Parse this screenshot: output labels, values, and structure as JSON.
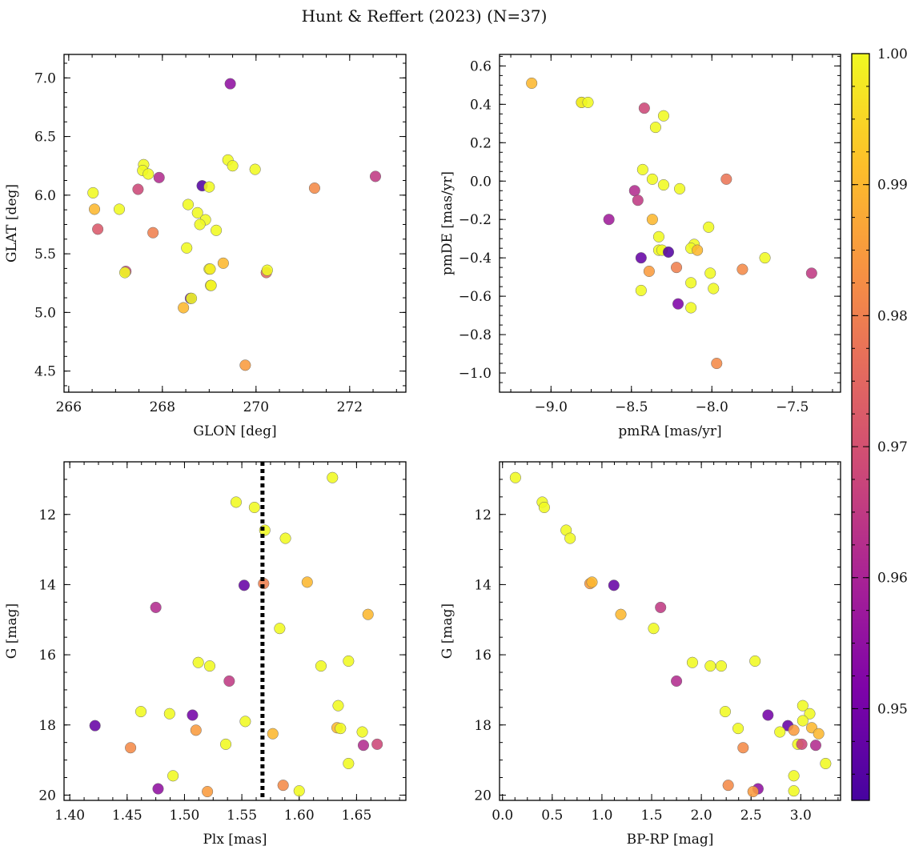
{
  "figure": {
    "title": "Hunt & Reffert (2023) (N=37)"
  },
  "colorbar": {
    "colormap": "plasma",
    "range": [
      0.943,
      1.0
    ],
    "ticks": [
      0.95,
      0.96,
      0.97,
      0.98,
      0.99,
      1.0
    ],
    "tick_labels": [
      "0.95",
      "0.96",
      "0.97",
      "0.98",
      "0.99",
      "1.00"
    ]
  },
  "chart_data": [
    {
      "type": "scatter",
      "name": "glon-glat",
      "xlabel": "GLON [deg]",
      "ylabel": "GLAT [deg]",
      "xlim": [
        265.9,
        273.2
      ],
      "ylim": [
        4.32,
        7.2
      ],
      "y_inverted": false,
      "xticks": [
        266,
        268,
        270,
        272
      ],
      "xtick_labels": [
        "266",
        "268",
        "270",
        "272"
      ],
      "yticks": [
        4.5,
        5.0,
        5.5,
        6.0,
        6.5,
        7.0
      ],
      "ytick_labels": [
        "4.5",
        "5.0",
        "5.5",
        "6.0",
        "6.5",
        "7.0"
      ],
      "points": [
        [
          269.45,
          6.95,
          0.955
        ],
        [
          267.6,
          6.26,
          1.0
        ],
        [
          267.58,
          6.21,
          1.0
        ],
        [
          267.7,
          6.18,
          1.0
        ],
        [
          267.93,
          6.15,
          0.962
        ],
        [
          269.4,
          6.3,
          1.0
        ],
        [
          269.5,
          6.25,
          1.0
        ],
        [
          269.98,
          6.22,
          1.0
        ],
        [
          272.55,
          6.16,
          0.965
        ],
        [
          271.25,
          6.06,
          0.982
        ],
        [
          268.85,
          6.08,
          0.945
        ],
        [
          269.0,
          6.07,
          1.0
        ],
        [
          266.52,
          6.02,
          1.0
        ],
        [
          267.48,
          6.05,
          0.968
        ],
        [
          268.55,
          5.92,
          1.0
        ],
        [
          266.55,
          5.88,
          0.99
        ],
        [
          267.08,
          5.88,
          1.0
        ],
        [
          268.75,
          5.85,
          1.0
        ],
        [
          268.92,
          5.79,
          1.0
        ],
        [
          268.8,
          5.75,
          1.0
        ],
        [
          266.62,
          5.71,
          0.972
        ],
        [
          267.8,
          5.68,
          0.98
        ],
        [
          269.15,
          5.7,
          1.0
        ],
        [
          268.52,
          5.55,
          1.0
        ],
        [
          269.3,
          5.42,
          0.99
        ],
        [
          269.0,
          5.37,
          1.0
        ],
        [
          269.02,
          5.37,
          0.998
        ],
        [
          267.22,
          5.35,
          0.968
        ],
        [
          267.2,
          5.34,
          1.0
        ],
        [
          270.22,
          5.34,
          0.975
        ],
        [
          270.24,
          5.36,
          1.0
        ],
        [
          269.03,
          5.23,
          0.99
        ],
        [
          269.04,
          5.23,
          1.0
        ],
        [
          268.6,
          5.12,
          0.948
        ],
        [
          268.62,
          5.12,
          1.0
        ],
        [
          268.45,
          5.04,
          0.99
        ],
        [
          269.77,
          4.55,
          0.985
        ]
      ]
    },
    {
      "type": "scatter",
      "name": "pmra-pmde",
      "xlabel": "pmRA [mas/yr]",
      "ylabel": "pmDE [mas/yr]",
      "xlim": [
        -9.32,
        -7.2
      ],
      "ylim": [
        -1.1,
        0.66
      ],
      "y_inverted": false,
      "xticks": [
        -9.0,
        -8.5,
        -8.0,
        -7.5
      ],
      "xtick_labels": [
        "−9.0",
        "−8.5",
        "−8.0",
        "−7.5"
      ],
      "yticks": [
        -1.0,
        -0.8,
        -0.6,
        -0.4,
        -0.2,
        0.0,
        0.2,
        0.4,
        0.6
      ],
      "ytick_labels": [
        "−1.0",
        "−0.8",
        "−0.6",
        "−0.4",
        "−0.2",
        "0.0",
        "0.2",
        "0.4",
        "0.6"
      ],
      "points": [
        [
          -9.12,
          0.51,
          0.99
        ],
        [
          -8.81,
          0.41,
          0.98
        ],
        [
          -8.81,
          0.41,
          1.0
        ],
        [
          -8.77,
          0.41,
          1.0
        ],
        [
          -8.42,
          0.38,
          0.968
        ],
        [
          -8.3,
          0.34,
          1.0
        ],
        [
          -8.35,
          0.28,
          1.0
        ],
        [
          -8.43,
          0.06,
          1.0
        ],
        [
          -8.37,
          0.01,
          1.0
        ],
        [
          -7.91,
          0.01,
          0.978
        ],
        [
          -8.3,
          -0.02,
          1.0
        ],
        [
          -8.2,
          -0.04,
          1.0
        ],
        [
          -8.48,
          -0.05,
          0.962
        ],
        [
          -8.46,
          -0.1,
          0.965
        ],
        [
          -8.64,
          -0.2,
          0.958
        ],
        [
          -8.37,
          -0.2,
          0.99
        ],
        [
          -8.02,
          -0.24,
          1.0
        ],
        [
          -8.33,
          -0.29,
          1.0
        ],
        [
          -8.11,
          -0.33,
          1.0
        ],
        [
          -8.13,
          -0.35,
          1.0
        ],
        [
          -8.33,
          -0.36,
          1.0
        ],
        [
          -8.31,
          -0.36,
          1.0
        ],
        [
          -8.27,
          -0.37,
          0.945
        ],
        [
          -8.09,
          -0.36,
          0.99
        ],
        [
          -7.67,
          -0.4,
          1.0
        ],
        [
          -8.44,
          -0.4,
          0.948
        ],
        [
          -7.81,
          -0.46,
          0.982
        ],
        [
          -8.22,
          -0.45,
          0.98
        ],
        [
          -8.39,
          -0.47,
          0.985
        ],
        [
          -8.01,
          -0.48,
          1.0
        ],
        [
          -7.38,
          -0.48,
          0.965
        ],
        [
          -8.13,
          -0.53,
          1.0
        ],
        [
          -7.99,
          -0.56,
          1.0
        ],
        [
          -8.44,
          -0.57,
          1.0
        ],
        [
          -8.21,
          -0.64,
          0.952
        ],
        [
          -8.13,
          -0.66,
          1.0
        ],
        [
          -7.97,
          -0.95,
          0.982
        ]
      ]
    },
    {
      "type": "scatter",
      "name": "plx-g",
      "xlabel": "Plx [mas]",
      "ylabel": "G [mag]",
      "xlim": [
        1.395,
        1.693
      ],
      "ylim": [
        20.15,
        10.5
      ],
      "y_inverted": true,
      "vline": {
        "x": 1.568,
        "style": "dotted",
        "color": "#000000"
      },
      "xticks": [
        1.4,
        1.45,
        1.5,
        1.55,
        1.6,
        1.65
      ],
      "xtick_labels": [
        "1.40",
        "1.45",
        "1.50",
        "1.55",
        "1.60",
        "1.65"
      ],
      "yticks": [
        12,
        14,
        16,
        18,
        20
      ],
      "ytick_labels": [
        "12",
        "14",
        "16",
        "18",
        "20"
      ],
      "points": [
        [
          1.629,
          10.95,
          1.0
        ],
        [
          1.545,
          11.65,
          1.0
        ],
        [
          1.561,
          11.8,
          1.0
        ],
        [
          1.57,
          12.45,
          1.0
        ],
        [
          1.588,
          12.68,
          1.0
        ],
        [
          1.552,
          14.02,
          0.948
        ],
        [
          1.569,
          13.97,
          0.98
        ],
        [
          1.607,
          13.93,
          0.99
        ],
        [
          1.475,
          14.65,
          0.962
        ],
        [
          1.66,
          14.85,
          0.99
        ],
        [
          1.583,
          15.25,
          1.0
        ],
        [
          1.512,
          16.22,
          1.0
        ],
        [
          1.522,
          16.32,
          1.0
        ],
        [
          1.643,
          16.18,
          1.0
        ],
        [
          1.619,
          16.32,
          1.0
        ],
        [
          1.539,
          16.75,
          0.965
        ],
        [
          1.462,
          17.62,
          1.0
        ],
        [
          1.487,
          17.68,
          1.0
        ],
        [
          1.507,
          17.72,
          0.95
        ],
        [
          1.634,
          17.45,
          1.0
        ],
        [
          1.553,
          17.9,
          1.0
        ],
        [
          1.422,
          18.02,
          0.948
        ],
        [
          1.51,
          18.15,
          0.985
        ],
        [
          1.577,
          18.25,
          0.99
        ],
        [
          1.633,
          18.08,
          0.99
        ],
        [
          1.636,
          18.1,
          1.0
        ],
        [
          1.655,
          18.2,
          1.0
        ],
        [
          1.656,
          18.58,
          0.962
        ],
        [
          1.668,
          18.55,
          0.968
        ],
        [
          1.536,
          18.55,
          1.0
        ],
        [
          1.453,
          18.65,
          0.982
        ],
        [
          1.643,
          19.1,
          1.0
        ],
        [
          1.49,
          19.45,
          1.0
        ],
        [
          1.586,
          19.72,
          0.982
        ],
        [
          1.477,
          19.82,
          0.955
        ],
        [
          1.52,
          19.9,
          0.985
        ],
        [
          1.6,
          19.88,
          1.0
        ]
      ]
    },
    {
      "type": "scatter",
      "name": "bprp-g",
      "xlabel": "BP-RP [mag]",
      "ylabel": "G [mag]",
      "xlim": [
        -0.03,
        3.4
      ],
      "ylim": [
        20.15,
        10.5
      ],
      "y_inverted": true,
      "xticks": [
        0.0,
        0.5,
        1.0,
        1.5,
        2.0,
        2.5,
        3.0
      ],
      "xtick_labels": [
        "0.0",
        "0.5",
        "1.0",
        "1.5",
        "2.0",
        "2.5",
        "3.0"
      ],
      "yticks": [
        12,
        14,
        16,
        18,
        20
      ],
      "ytick_labels": [
        "12",
        "14",
        "16",
        "18",
        "20"
      ],
      "points": [
        [
          0.13,
          10.95,
          1.0
        ],
        [
          0.4,
          11.65,
          1.0
        ],
        [
          0.42,
          11.8,
          1.0
        ],
        [
          0.64,
          12.45,
          1.0
        ],
        [
          0.68,
          12.68,
          1.0
        ],
        [
          0.88,
          13.97,
          0.985
        ],
        [
          0.9,
          13.93,
          0.99
        ],
        [
          1.12,
          14.02,
          0.948
        ],
        [
          1.59,
          14.65,
          0.965
        ],
        [
          1.19,
          14.85,
          0.99
        ],
        [
          1.52,
          15.25,
          1.0
        ],
        [
          1.91,
          16.22,
          1.0
        ],
        [
          2.09,
          16.32,
          1.0
        ],
        [
          2.2,
          16.32,
          1.0
        ],
        [
          2.54,
          16.18,
          1.0
        ],
        [
          1.75,
          16.75,
          0.962
        ],
        [
          2.24,
          17.62,
          1.0
        ],
        [
          2.67,
          17.72,
          0.95
        ],
        [
          3.02,
          17.45,
          1.0
        ],
        [
          3.09,
          17.68,
          1.0
        ],
        [
          2.37,
          18.1,
          1.0
        ],
        [
          2.87,
          18.02,
          0.948
        ],
        [
          2.93,
          18.15,
          0.985
        ],
        [
          2.79,
          18.2,
          1.0
        ],
        [
          3.11,
          18.08,
          0.99
        ],
        [
          3.18,
          18.25,
          0.99
        ],
        [
          3.02,
          17.88,
          1.0
        ],
        [
          2.42,
          18.65,
          0.982
        ],
        [
          2.97,
          18.55,
          1.0
        ],
        [
          3.01,
          18.55,
          0.968
        ],
        [
          3.15,
          18.58,
          0.962
        ],
        [
          3.25,
          19.1,
          1.0
        ],
        [
          2.93,
          19.45,
          1.0
        ],
        [
          2.27,
          19.72,
          0.982
        ],
        [
          2.57,
          19.82,
          0.955
        ],
        [
          2.52,
          19.9,
          0.985
        ],
        [
          2.93,
          19.88,
          1.0
        ]
      ]
    }
  ]
}
